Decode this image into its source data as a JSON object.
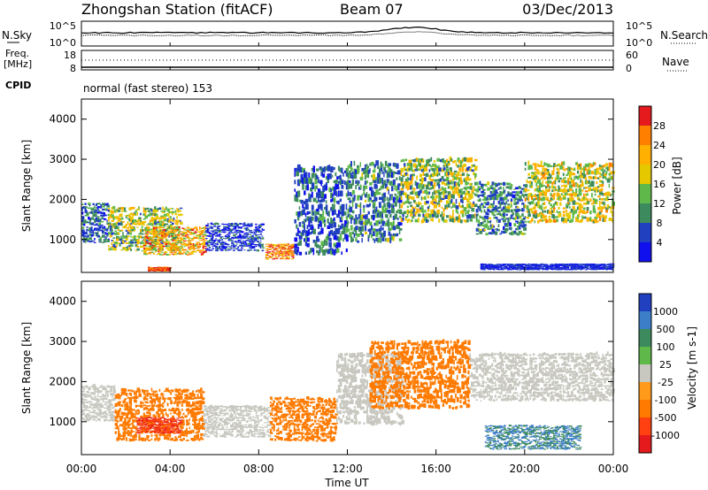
{
  "header": {
    "station": "Zhongshan Station (fitACF)",
    "beam": "Beam 07",
    "date": "03/Dec/2013"
  },
  "top_panel": {
    "left_label": "N.Sky",
    "left_ticks": [
      "10^5",
      "10^0"
    ],
    "right_ticks": [
      "10^5",
      "10^0"
    ],
    "right_label": "N.Search"
  },
  "freq_panel": {
    "left_label_1": "Freq.",
    "left_label_2": "[MHz]",
    "left_ticks": [
      "18",
      "8"
    ],
    "right_ticks": [
      "60",
      "0"
    ],
    "right_label": "Nave",
    "cpid_label": "CPID",
    "cpid_text": "normal (fast stereo) 153"
  },
  "chart_data": [
    {
      "type": "heatmap",
      "quantity": "Power",
      "colorbar_label": "Power [dB]",
      "colorbar_ticks": [
        "28",
        "24",
        "20",
        "16",
        "12",
        "8",
        "4"
      ],
      "colorbar_colors": [
        "#e41a1c",
        "#ff8000",
        "#ffb000",
        "#e6c800",
        "#5eb84a",
        "#3c8a5e",
        "#2040c0",
        "#1010ee"
      ],
      "ylabel": "Slant Range [km]",
      "yticks": [
        "4000",
        "3000",
        "2000",
        "1000"
      ],
      "ylim": [
        180,
        4500
      ],
      "xlim_hours": [
        0,
        24
      ],
      "echo_bands_km": [
        {
          "from_h": 0.0,
          "to_h": 1.2,
          "low": 900,
          "high": 1900,
          "value": 8
        },
        {
          "from_h": 1.2,
          "to_h": 4.5,
          "low": 700,
          "high": 1800,
          "value": 14
        },
        {
          "from_h": 2.8,
          "to_h": 5.6,
          "low": 600,
          "high": 1300,
          "value": 20
        },
        {
          "from_h": 3.0,
          "to_h": 4.0,
          "low": 220,
          "high": 320,
          "value": 28
        },
        {
          "from_h": 5.6,
          "to_h": 8.2,
          "low": 700,
          "high": 1400,
          "value": 6
        },
        {
          "from_h": 8.3,
          "to_h": 9.6,
          "low": 500,
          "high": 900,
          "value": 24
        },
        {
          "from_h": 9.6,
          "to_h": 12.0,
          "low": 600,
          "high": 2800,
          "value": 8
        },
        {
          "from_h": 12.0,
          "to_h": 14.4,
          "low": 900,
          "high": 2900,
          "value": 10
        },
        {
          "from_h": 14.4,
          "to_h": 17.8,
          "low": 1400,
          "high": 3000,
          "value": 14
        },
        {
          "from_h": 17.8,
          "to_h": 20.0,
          "low": 1100,
          "high": 2400,
          "value": 10
        },
        {
          "from_h": 20.0,
          "to_h": 24.0,
          "low": 1400,
          "high": 2900,
          "value": 16
        },
        {
          "from_h": 18.0,
          "to_h": 24.0,
          "low": 250,
          "high": 400,
          "value": 5
        }
      ]
    },
    {
      "type": "heatmap",
      "quantity": "Velocity",
      "colorbar_label": "Velocity [m s-1]",
      "colorbar_ticks": [
        "1000",
        "500",
        "100",
        "25",
        "-25",
        "-100",
        "-500",
        "-1000"
      ],
      "colorbar_colors": [
        "#2040c0",
        "#3c7ec8",
        "#3c8a5e",
        "#5eb84a",
        "#c8c8c0",
        "#ff9a1a",
        "#ff7a00",
        "#ff4010",
        "#e41a1c"
      ],
      "ylabel": "Slant Range [km]",
      "yticks": [
        "4000",
        "3000",
        "2000",
        "1000"
      ],
      "ylim": [
        180,
        4500
      ],
      "xlim_hours": [
        0,
        24
      ],
      "echo_bands_km": [
        {
          "from_h": 0.0,
          "to_h": 1.5,
          "low": 1000,
          "high": 1900,
          "value": 0
        },
        {
          "from_h": 1.5,
          "to_h": 5.5,
          "low": 500,
          "high": 1800,
          "value": -300
        },
        {
          "from_h": 2.5,
          "to_h": 4.5,
          "low": 700,
          "high": 1100,
          "value": -800
        },
        {
          "from_h": 5.5,
          "to_h": 8.5,
          "low": 600,
          "high": 1400,
          "value": 0
        },
        {
          "from_h": 8.5,
          "to_h": 11.5,
          "low": 500,
          "high": 1600,
          "value": -300
        },
        {
          "from_h": 11.5,
          "to_h": 14.5,
          "low": 900,
          "high": 2700,
          "value": 0
        },
        {
          "from_h": 13.0,
          "to_h": 17.5,
          "low": 1300,
          "high": 3000,
          "value": -300
        },
        {
          "from_h": 17.5,
          "to_h": 24.0,
          "low": 1500,
          "high": 2700,
          "value": 0
        },
        {
          "from_h": 18.2,
          "to_h": 22.5,
          "low": 300,
          "high": 900,
          "value": 300
        }
      ]
    }
  ],
  "x_axis": {
    "ticks": [
      "00:00",
      "04:00",
      "08:00",
      "12:00",
      "16:00",
      "20:00",
      "00:00"
    ],
    "label": "Time UT"
  }
}
